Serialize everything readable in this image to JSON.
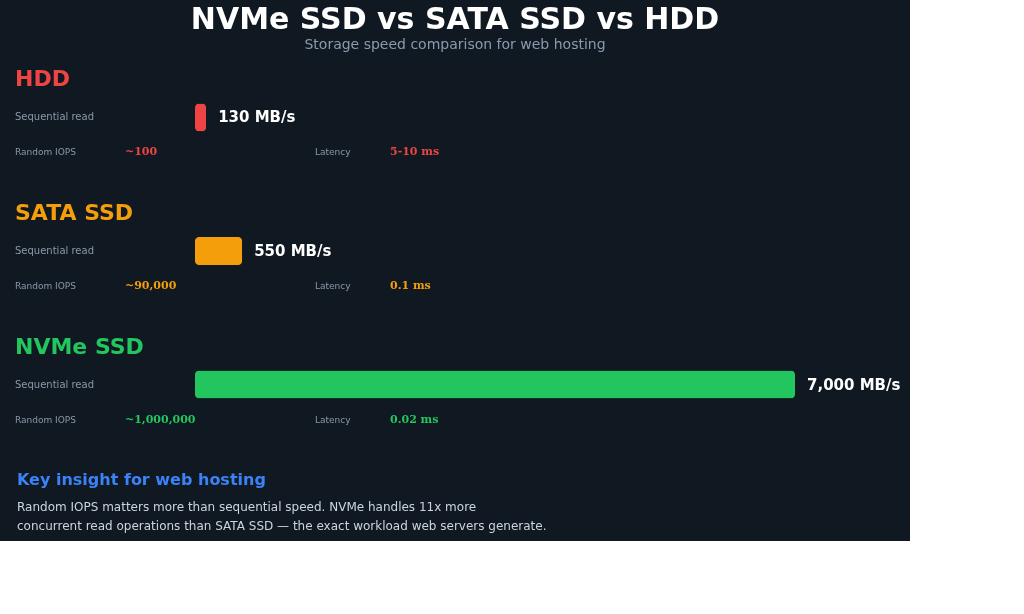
{
  "chart_data": {
    "type": "bar",
    "orientation": "horizontal",
    "title": "NVMe SSD vs SATA SSD vs HDD",
    "subtitle": "Storage speed comparison for web hosting",
    "categories": [
      "HDD",
      "SATA SSD",
      "NVMe SSD"
    ],
    "values": [
      130,
      550,
      7000
    ],
    "colors": [
      "#ef4444",
      "#f59e0b",
      "#22c55e"
    ],
    "value_labels": [
      "130 MB/s",
      "550 MB/s",
      "7,000 MB/s"
    ],
    "annotations": [
      "Sequential read",
      "Random IOPS",
      "~100",
      "Latency",
      "5-10 ms",
      "Sequential read",
      "Random IOPS",
      "~90,000",
      "Latency",
      "0.1 ms",
      "Sequential read",
      "Random IOPS",
      "~1,000,000",
      "Latency",
      "0.02 ms",
      "Key insight for web hosting",
      "Random IOPS matters more than sequential speed. NVMe handles 11x more",
      "concurrent read operations than SATA SSD — the exact workload web servers generate."
    ],
    "legend": false
  }
}
